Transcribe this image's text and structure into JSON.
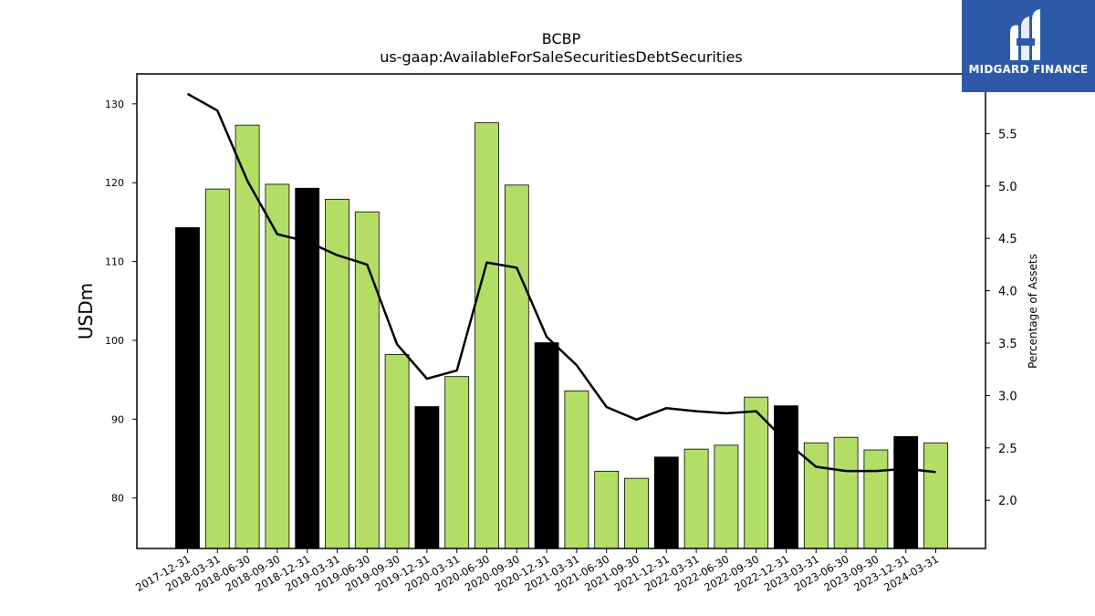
{
  "chart_data": {
    "type": "bar",
    "title": "BCBP",
    "subtitle": "us-gaap:AvailableForSaleSecuritiesDebtSecurities",
    "ylabel": "USDm",
    "y2label": "Percentage of Assets",
    "ylim": [
      73.6,
      133.8
    ],
    "y2lim": [
      1.54,
      6.07
    ],
    "yticks": [
      80,
      90,
      100,
      110,
      120,
      130
    ],
    "y2ticks": [
      "2.0",
      "2.5",
      "3.0",
      "3.5",
      "4.0",
      "4.5",
      "5.0",
      "5.5"
    ],
    "categories": [
      "2017-12-31",
      "2018-03-31",
      "2018-06-30",
      "2018-09-30",
      "2018-12-31",
      "2019-03-31",
      "2019-06-30",
      "2019-09-30",
      "2019-12-31",
      "2020-03-31",
      "2020-06-30",
      "2020-09-30",
      "2020-12-31",
      "2021-03-31",
      "2021-06-30",
      "2021-09-30",
      "2021-12-31",
      "2022-03-31",
      "2022-06-30",
      "2022-09-30",
      "2022-12-31",
      "2023-03-31",
      "2023-06-30",
      "2023-09-30",
      "2023-12-31",
      "2024-03-31"
    ],
    "series": [
      {
        "type": "bar",
        "values": [
          114.3,
          119.2,
          127.3,
          119.8,
          119.3,
          117.9,
          116.3,
          98.2,
          91.6,
          95.4,
          127.6,
          119.7,
          99.7,
          93.6,
          83.4,
          82.5,
          85.2,
          86.2,
          86.7,
          92.8,
          91.7,
          87.0,
          87.7,
          86.1,
          87.8,
          87.0
        ],
        "year_end": [
          true,
          false,
          false,
          false,
          true,
          false,
          false,
          false,
          true,
          false,
          false,
          false,
          true,
          false,
          false,
          false,
          true,
          false,
          false,
          false,
          true,
          false,
          false,
          false,
          true,
          false
        ]
      },
      {
        "type": "line",
        "axis": "right",
        "values": [
          5.88,
          5.72,
          5.05,
          4.54,
          4.47,
          4.34,
          4.25,
          3.49,
          3.16,
          3.24,
          4.27,
          4.22,
          3.56,
          3.29,
          2.89,
          2.77,
          2.88,
          2.85,
          2.83,
          2.85,
          2.56,
          2.32,
          2.28,
          2.28,
          2.3,
          2.27
        ]
      }
    ],
    "colors": {
      "bar": "#b2de66",
      "bar_year_end": "#000000",
      "line": "#000000",
      "bar_edge": "#000000"
    },
    "grid": false,
    "legend": "none"
  },
  "logo": {
    "text": "MIDGARD FINANCE",
    "background": "#2d5aa8"
  }
}
